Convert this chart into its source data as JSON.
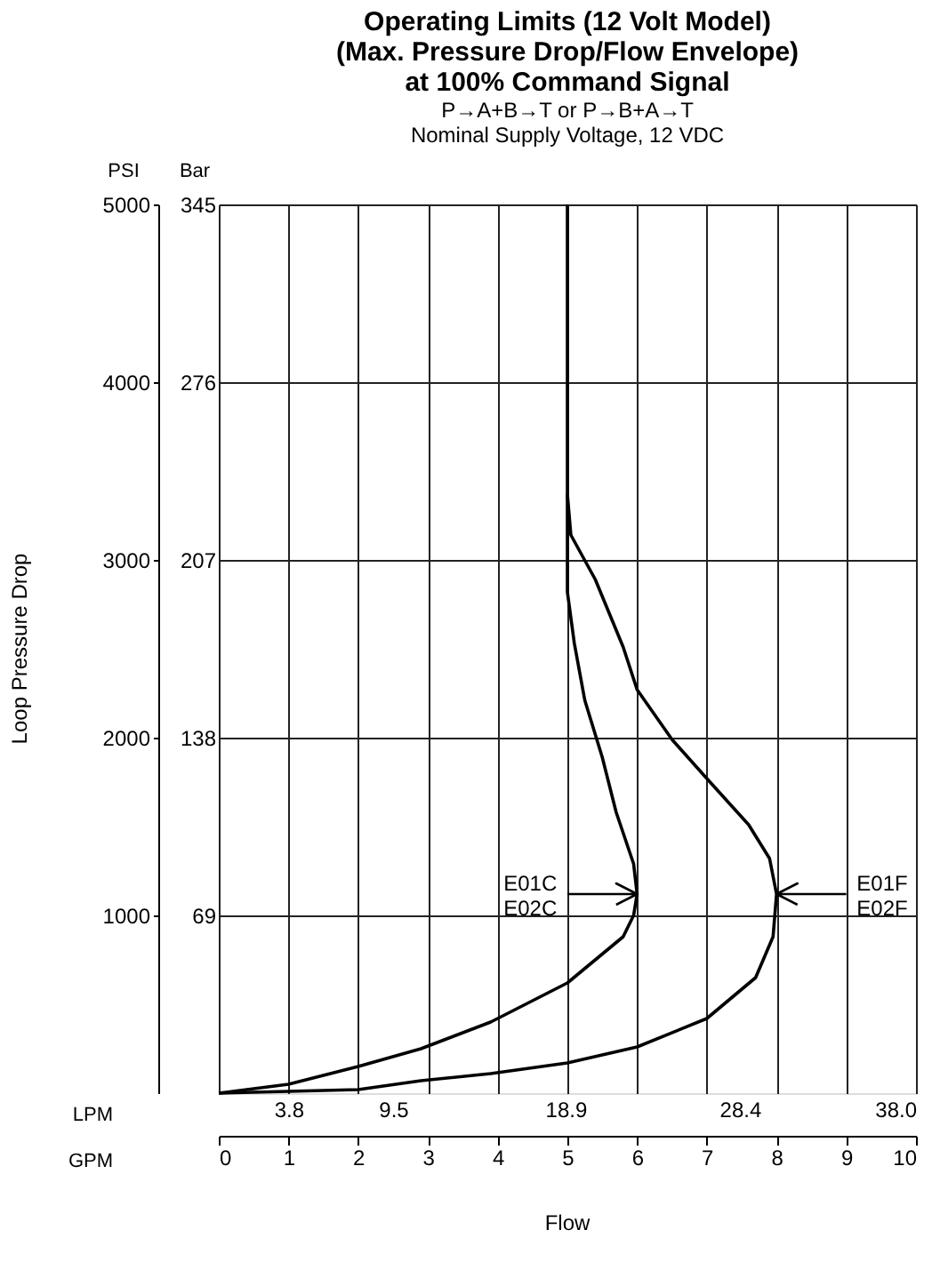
{
  "chart_data": {
    "type": "line",
    "title": "Operating Limits (12 Volt Model)\n(Max. Pressure Drop/Flow Envelope)\nat 100% Command Signal",
    "subtitle": "P→A+B→T or P→B+A→T\nNominal Supply Voltage, 12 VDC",
    "xlabel": "GPM",
    "x2label": "LPM",
    "ylabel": "PSI",
    "y2label": "Bar",
    "series": [
      {
        "name": "E01C\nE02C",
        "color": "#000000",
        "x": [
          0,
          1.0,
          2.0,
          2.9,
          3.9,
          5.0,
          5.8,
          5.95,
          6.0,
          5.95,
          5.7,
          5.5,
          5.25,
          5.1,
          5.0,
          5.0
        ],
        "values": [
          0,
          50,
          150,
          250,
          400,
          620,
          880,
          1000,
          1120,
          1290,
          1580,
          1890,
          2210,
          2530,
          2820,
          5000
        ]
      },
      {
        "name": "E01F\nE02F",
        "color": "#000000",
        "x": [
          0,
          1.0,
          2.0,
          2.9,
          3.9,
          5.0,
          6.0,
          7.0,
          7.7,
          7.95,
          8.0,
          7.9,
          7.6,
          7.0,
          6.5,
          6.0,
          5.8,
          5.4,
          5.05,
          5.0
        ],
        "values": [
          0,
          10,
          20,
          70,
          110,
          170,
          260,
          420,
          650,
          880,
          1120,
          1320,
          1510,
          1770,
          1990,
          2270,
          2510,
          2890,
          3140,
          3370
        ]
      }
    ],
    "annotations": [
      "Loop Pressure Drop",
      "Flow"
    ],
    "xlim": [
      0,
      10
    ],
    "xticks": [
      0,
      1,
      2,
      3,
      4,
      5,
      6,
      7,
      8,
      9,
      10
    ],
    "x2lim": [
      0,
      38
    ],
    "x2ticks": [
      3.8,
      9.5,
      18.9,
      28.4,
      {
        "value": 38,
        "label": "38.0"
      }
    ],
    "ylim": [
      0,
      5000
    ],
    "yticks": [
      1000,
      2000,
      3000,
      4000,
      5000
    ],
    "y2lim": [
      0,
      345
    ],
    "y2ticks": [
      69,
      138,
      207,
      276,
      345
    ],
    "grid": true,
    "marker": "none",
    "line_style": "solid"
  }
}
